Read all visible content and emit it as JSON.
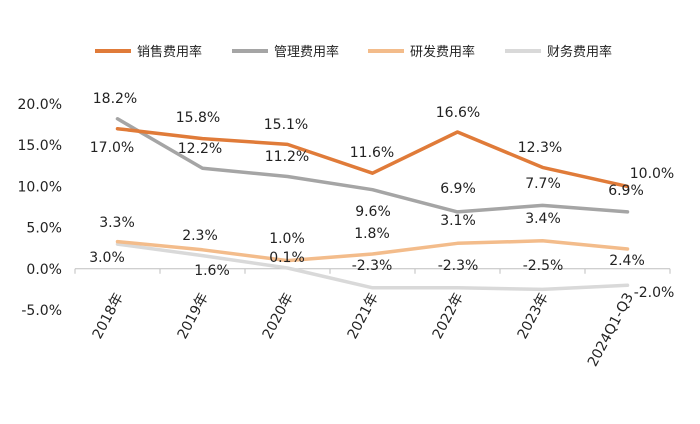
{
  "chart_data": {
    "type": "line",
    "categories": [
      "2018年",
      "2019年",
      "2020年",
      "2021年",
      "2022年",
      "2023年",
      "2024Q1-Q3"
    ],
    "ylim": [
      -5,
      20
    ],
    "y_ticks": [
      "-5.0%",
      "0.0%",
      "5.0%",
      "10.0%",
      "15.0%",
      "20.0%"
    ],
    "legend_position": "top",
    "grid": false,
    "series": [
      {
        "name": "销售费用率",
        "color": "#E07B39",
        "values": [
          17.0,
          15.8,
          15.1,
          11.6,
          16.6,
          12.3,
          10.0
        ],
        "labels": [
          "17.0%",
          "15.8%",
          "15.1%",
          "11.6%",
          "16.6%",
          "12.3%",
          "10.0%"
        ]
      },
      {
        "name": "管理费用率",
        "color": "#A5A5A5",
        "values": [
          18.2,
          12.2,
          11.2,
          9.6,
          6.9,
          7.7,
          6.9
        ],
        "labels": [
          "18.2%",
          "12.2%",
          "11.2%",
          "9.6%",
          "6.9%",
          "7.7%",
          "6.9%"
        ]
      },
      {
        "name": "研发费用率",
        "color": "#F3BC8B",
        "values": [
          3.3,
          2.3,
          1.0,
          1.8,
          3.1,
          3.4,
          2.4
        ],
        "labels": [
          "3.3%",
          "2.3%",
          "1.0%",
          "1.8%",
          "3.1%",
          "3.4%",
          "2.4%"
        ]
      },
      {
        "name": "财务费用率",
        "color": "#D9D9D9",
        "values": [
          3.0,
          1.6,
          0.1,
          -2.3,
          -2.3,
          -2.5,
          -2.0
        ],
        "labels": [
          "3.0%",
          "1.6%",
          "0.1%",
          "-2.3%",
          "-2.3%",
          "-2.5%",
          "-2.0%"
        ]
      }
    ]
  }
}
